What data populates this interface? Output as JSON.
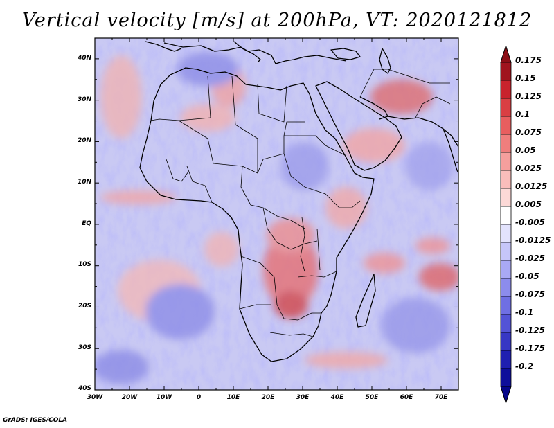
{
  "title": "Vertical velocity [m/s] at 200hPa, VT: 2020121812",
  "footer": "GrADS: IGES/COLA",
  "map": {
    "lon_range": [
      -30,
      75
    ],
    "lat_range": [
      -40,
      45
    ],
    "lat_labels": [
      "40N",
      "30N",
      "20N",
      "10N",
      "EQ",
      "10S",
      "20S",
      "30S",
      "40S"
    ],
    "lon_labels": [
      "30W",
      "20W",
      "10W",
      "0",
      "10E",
      "20E",
      "30E",
      "40E",
      "50E",
      "60E",
      "70E"
    ],
    "field": "vertical velocity",
    "level": "200hPa",
    "valid_time": "2020121812"
  },
  "colorbar": {
    "labels": [
      "0.175",
      "0.15",
      "0.125",
      "0.1",
      "0.075",
      "0.05",
      "0.025",
      "0.0125",
      "0.005",
      "-0.005",
      "-0.0125",
      "-0.025",
      "-0.05",
      "-0.075",
      "-0.1",
      "-0.125",
      "-0.175",
      "-0.2"
    ],
    "colors": [
      "#a0141e",
      "#c8232d",
      "#d93f43",
      "#e85e5f",
      "#ef7e7d",
      "#f59f9d",
      "#f9bdbb",
      "#fcd9d7",
      "#ffffff",
      "#e3e3fd",
      "#c6c6f9",
      "#a9a9f4",
      "#8c8cec",
      "#6f6fe3",
      "#5353d6",
      "#3737c4",
      "#1f1fb0",
      "#0e0e9a"
    ],
    "top_arrow_color": "#8c0f17",
    "bottom_arrow_color": "#06068a"
  }
}
